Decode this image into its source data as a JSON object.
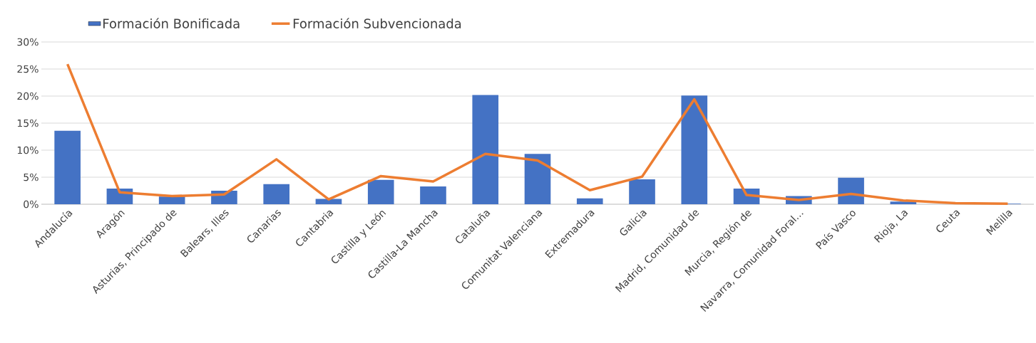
{
  "chart_data": {
    "type": "bar",
    "categories": [
      "Andalucía",
      "Aragón",
      "Asturias, Principado de",
      "Balears, Illes",
      "Canarias",
      "Cantabria",
      "Castilla y León",
      "Castilla-La Mancha",
      "Cataluña",
      "Comunitat Valenciana",
      "Extremadura",
      "Galicia",
      "Madrid, Comunidad de",
      "Murcia, Región de",
      "Navarra, Comunidad Foral…",
      "País Vasco",
      "Rioja, La",
      "Ceuta",
      "Melilla"
    ],
    "series": [
      {
        "name": "Formación Bonificada",
        "color": "#4472c4",
        "values": [
          13.6,
          2.9,
          1.4,
          2.5,
          3.7,
          1.0,
          4.5,
          3.3,
          20.2,
          9.3,
          1.1,
          4.6,
          20.1,
          2.9,
          1.5,
          4.9,
          0.5,
          null,
          0.1
        ]
      },
      {
        "name": "Formación Subvencionada",
        "type": "line",
        "color": "#ed7d31",
        "values": [
          25.9,
          2.2,
          1.5,
          1.8,
          8.3,
          0.9,
          5.2,
          4.2,
          9.3,
          8.1,
          2.6,
          5.1,
          19.4,
          1.7,
          0.8,
          1.9,
          0.7,
          0.2,
          0.1
        ]
      }
    ],
    "ylim": [
      0,
      30
    ],
    "yticks": [
      {
        "value": 0,
        "label": "0%"
      },
      {
        "value": 5,
        "label": "5%"
      },
      {
        "value": 10,
        "label": "10%"
      },
      {
        "value": 15,
        "label": "15%"
      },
      {
        "value": 20,
        "label": "20%"
      },
      {
        "value": 25,
        "label": "25%"
      },
      {
        "value": 30,
        "label": "30%"
      }
    ],
    "grid": "y",
    "legend": "top left"
  }
}
